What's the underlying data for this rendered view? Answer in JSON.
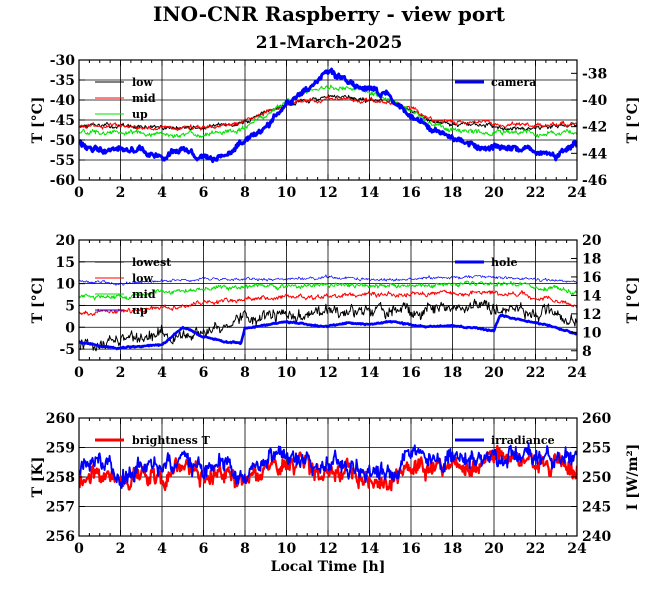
{
  "title": "INO-CNR Raspberry - view port",
  "subtitle": "21-March-2025",
  "chart_data": [
    {
      "type": "line",
      "xlabel": "",
      "ylabel": "T [°C]",
      "ylabel_right": "T [°C]",
      "xlim": [
        0,
        24
      ],
      "xticks": [
        "0",
        "2",
        "4",
        "6",
        "8",
        "10",
        "12",
        "14",
        "16",
        "18",
        "20",
        "22",
        "24"
      ],
      "ylim": [
        -60,
        -30
      ],
      "yticks": [
        "-30",
        "-35",
        "-40",
        "-45",
        "-50",
        "-55",
        "-60"
      ],
      "ylim_right": [
        -46,
        -37
      ],
      "yticks_right": [
        "-38",
        "-40",
        "-42",
        "-44",
        "-46"
      ],
      "grid": true,
      "legend_left": "top-left",
      "legend_right": "top-right",
      "series": [
        {
          "name": "low",
          "color": "#000000",
          "axis": "left",
          "noise": 0.6,
          "x": [
            0,
            2,
            4,
            6,
            8,
            9,
            10,
            11,
            12,
            13,
            14,
            15,
            16,
            17,
            18,
            20,
            22,
            24
          ],
          "y": [
            -46.5,
            -46.5,
            -47,
            -47,
            -45.5,
            -43,
            -41,
            -40,
            -39.5,
            -39.5,
            -40,
            -40.5,
            -43,
            -45,
            -46,
            -46.5,
            -47,
            -46
          ]
        },
        {
          "name": "mid",
          "color": "#ff0000",
          "axis": "left",
          "noise": 0.6,
          "x": [
            0,
            2,
            4,
            6,
            8,
            9,
            10,
            11,
            12,
            13,
            14,
            15,
            16,
            17,
            18,
            20,
            22,
            24
          ],
          "y": [
            -46.5,
            -46.5,
            -47,
            -47,
            -45.5,
            -43,
            -41,
            -40,
            -40,
            -40,
            -40,
            -40.5,
            -42.5,
            -45,
            -45.5,
            -46,
            -46.5,
            -46
          ]
        },
        {
          "name": "up",
          "color": "#00e000",
          "axis": "left",
          "noise": 0.7,
          "x": [
            0,
            2,
            4,
            6,
            8,
            9,
            10,
            11,
            12,
            13,
            14,
            15,
            16,
            17,
            18,
            20,
            22,
            24
          ],
          "y": [
            -48,
            -48,
            -48.5,
            -48.5,
            -47,
            -44,
            -40.5,
            -38,
            -37,
            -37,
            -38,
            -40,
            -43,
            -46.5,
            -47.5,
            -48,
            -48.5,
            -48
          ]
        },
        {
          "name": "camera",
          "color": "#0000ff",
          "axis": "right",
          "noise": 0.25,
          "x": [
            0,
            1,
            2,
            3,
            4,
            5,
            6,
            7,
            8,
            9,
            10,
            11,
            12,
            13,
            14,
            15,
            16,
            17,
            18,
            19,
            20,
            21,
            22,
            23,
            24
          ],
          "y": [
            -43.3,
            -43.8,
            -43.6,
            -43.7,
            -44.4,
            -43.6,
            -44.6,
            -44.2,
            -43.2,
            -42.2,
            -40.3,
            -39.2,
            -37.8,
            -38.6,
            -39.2,
            -39.8,
            -41.2,
            -42.2,
            -42.8,
            -43.5,
            -43.5,
            -43.5,
            -43.8,
            -44.2,
            -43.3
          ]
        }
      ]
    },
    {
      "type": "line",
      "xlabel": "",
      "ylabel": "T [°C]",
      "ylabel_right": "T [°C]",
      "xlim": [
        0,
        24
      ],
      "xticks": [
        "0",
        "2",
        "4",
        "6",
        "8",
        "10",
        "12",
        "14",
        "16",
        "18",
        "20",
        "22",
        "24"
      ],
      "ylim": [
        -7.5,
        20
      ],
      "yticks": [
        "20",
        "15",
        "10",
        "5",
        "0",
        "-5"
      ],
      "ylim_right": [
        7,
        20
      ],
      "yticks_right": [
        "20",
        "18",
        "16",
        "14",
        "12",
        "10",
        "8"
      ],
      "grid": true,
      "legend_left": "top-left",
      "legend_right": "top-right",
      "series": [
        {
          "name": "lowest",
          "color": "#000000",
          "axis": "left",
          "noise": 1.6,
          "x": [
            0,
            2,
            4,
            6,
            8,
            10,
            12,
            14,
            16,
            18,
            20,
            22,
            24
          ],
          "y": [
            -4.5,
            -3,
            -2,
            -1,
            2.5,
            2.5,
            3,
            3.5,
            4,
            4.5,
            5,
            3.5,
            2
          ]
        },
        {
          "name": "low",
          "color": "#ff0000",
          "axis": "left",
          "noise": 0.6,
          "x": [
            0,
            2,
            4,
            6,
            8,
            10,
            12,
            14,
            16,
            18,
            20,
            22,
            24
          ],
          "y": [
            3,
            3.5,
            4.5,
            5.5,
            6.5,
            7,
            7,
            7.5,
            7.5,
            8,
            8,
            7,
            5
          ]
        },
        {
          "name": "mid",
          "color": "#00e000",
          "axis": "left",
          "noise": 0.6,
          "x": [
            0,
            2,
            4,
            6,
            8,
            10,
            12,
            14,
            16,
            18,
            20,
            22,
            24
          ],
          "y": [
            7,
            7,
            8,
            9,
            9.5,
            9.5,
            9.5,
            9.5,
            9.5,
            10,
            10,
            9.5,
            8
          ]
        },
        {
          "name": "up",
          "color": "#0000ff",
          "axis": "left",
          "width": 0.7,
          "noise": 0.4,
          "x": [
            0,
            2,
            4,
            6,
            8,
            10,
            12,
            14,
            16,
            18,
            20,
            22,
            24
          ],
          "y": [
            10.5,
            10,
            10.5,
            11,
            11,
            11,
            11.5,
            11,
            11,
            11.5,
            11.5,
            11,
            10.5
          ]
        },
        {
          "name": "hole",
          "color": "#0000ff",
          "axis": "right",
          "width": 2.6,
          "noise": 0.1,
          "x": [
            0,
            1,
            2,
            3,
            4,
            5,
            6,
            7,
            7.8,
            8,
            9,
            10,
            11,
            12,
            13,
            14,
            15,
            16,
            17,
            18,
            19,
            20,
            20.3,
            21,
            22,
            23,
            24
          ],
          "y": [
            9,
            8.5,
            8.3,
            8.5,
            8.6,
            10.5,
            9.5,
            9,
            8.8,
            10.5,
            10.8,
            11.2,
            10.8,
            10.6,
            11,
            10.8,
            11.2,
            10.8,
            10.6,
            10.7,
            10.5,
            10.2,
            11.8,
            11.5,
            11,
            10.5,
            9.8
          ]
        }
      ]
    },
    {
      "type": "line",
      "xlabel": "Local Time [h]",
      "ylabel": "T [K]",
      "ylabel_right": "I [W/m²]",
      "xlim": [
        0,
        24
      ],
      "xticks": [
        "0",
        "2",
        "4",
        "6",
        "8",
        "10",
        "12",
        "14",
        "16",
        "18",
        "20",
        "22",
        "24"
      ],
      "ylim": [
        256,
        260
      ],
      "yticks": [
        "260",
        "259",
        "258",
        "257",
        "256"
      ],
      "ylim_right": [
        240,
        260
      ],
      "yticks_right": [
        "260",
        "255",
        "250",
        "245",
        "240"
      ],
      "grid": true,
      "legend_left": "top-left",
      "legend_right": "top-right",
      "series": [
        {
          "name": "brightness T",
          "color": "#ff0000",
          "axis": "left",
          "noise": 0.35,
          "x": [
            0,
            1,
            2,
            3,
            4,
            5,
            6,
            7,
            8,
            9,
            10,
            11,
            12,
            13,
            14,
            15,
            16,
            17,
            18,
            19,
            20,
            21,
            22,
            23,
            24
          ],
          "y": [
            258,
            258.1,
            257.8,
            258.2,
            257.9,
            258.5,
            257.9,
            258.2,
            257.6,
            258.3,
            258.5,
            258.4,
            258.1,
            258.2,
            257.9,
            258,
            258.4,
            258.3,
            258.5,
            258.4,
            258.7,
            258.8,
            258.5,
            258.4,
            258.3
          ]
        },
        {
          "name": "irradiance",
          "color": "#0000ff",
          "axis": "right",
          "noise": 1.8,
          "x": [
            0,
            1,
            2,
            3,
            4,
            5,
            6,
            7,
            8,
            9,
            10,
            11,
            12,
            13,
            14,
            15,
            16,
            17,
            18,
            19,
            20,
            21,
            22,
            23,
            24
          ],
          "y": [
            251,
            252,
            250.5,
            252.5,
            251,
            253.5,
            250.5,
            252,
            249.5,
            252.5,
            253.5,
            253,
            251.5,
            252,
            250.5,
            251,
            253,
            252.5,
            253.5,
            253,
            254,
            254.5,
            253.5,
            253,
            252.5
          ]
        }
      ]
    }
  ]
}
